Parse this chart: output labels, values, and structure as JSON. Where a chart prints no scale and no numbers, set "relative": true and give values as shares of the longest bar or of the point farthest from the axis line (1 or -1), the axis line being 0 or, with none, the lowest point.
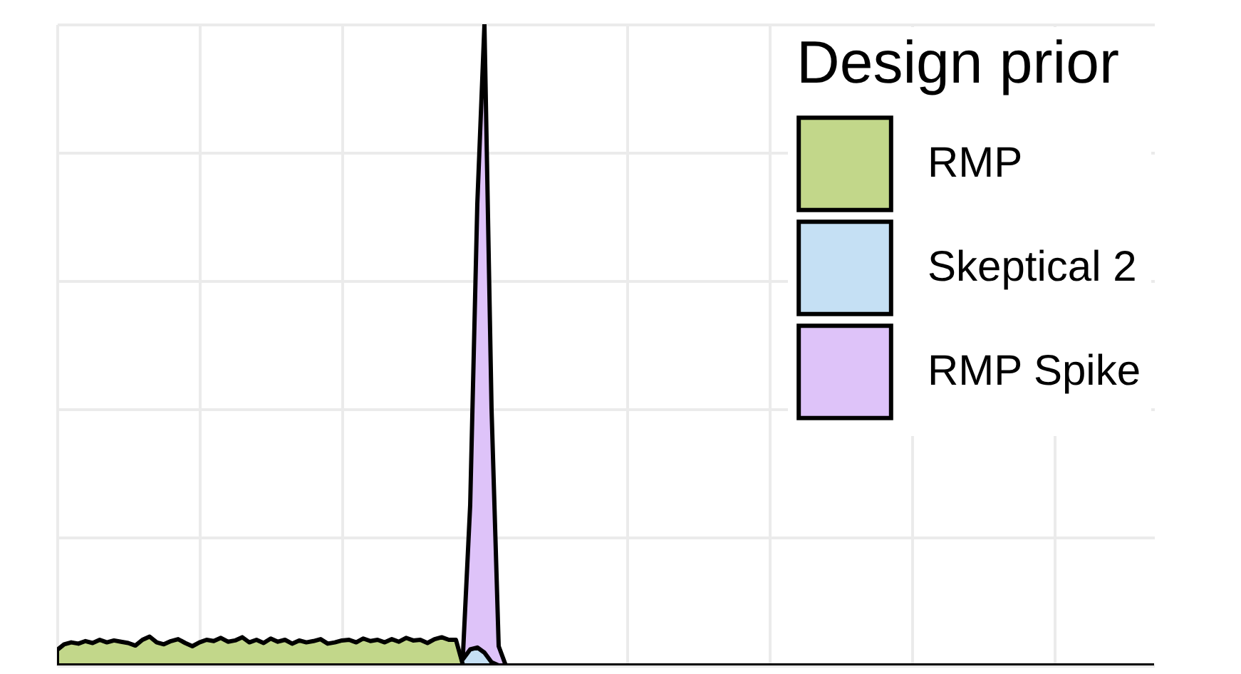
{
  "chart_data": {
    "type": "area",
    "relative": true,
    "legend_title": "Design prior",
    "legend": "top right",
    "grid": true,
    "tick_labels": false,
    "categories": [
      null,
      null,
      null,
      null,
      null,
      null,
      null,
      null,
      null,
      null,
      null,
      null,
      null,
      null,
      null,
      null,
      null,
      null,
      null,
      null,
      null,
      null,
      null,
      null,
      null,
      null,
      null,
      null,
      null,
      null,
      null,
      null,
      null,
      null,
      null,
      null,
      null,
      null,
      null,
      null,
      null,
      null,
      null,
      null,
      null,
      null,
      null,
      null,
      null,
      null,
      null,
      null,
      null,
      null,
      null,
      null,
      null,
      null,
      null,
      null,
      null,
      null,
      null,
      null,
      null,
      null,
      null,
      null,
      null,
      null,
      null,
      null,
      null,
      null,
      null,
      null,
      null,
      null,
      null,
      null,
      null,
      null,
      null,
      null,
      null,
      null,
      null,
      null,
      null,
      null,
      null,
      null,
      null,
      null,
      null,
      null,
      null,
      null,
      null,
      null,
      null,
      null,
      null,
      null,
      null,
      null,
      null,
      null,
      null,
      null,
      null,
      null,
      null,
      null,
      null,
      null,
      null,
      null,
      null,
      null,
      null,
      null,
      null,
      null,
      null,
      null,
      null,
      null,
      null,
      null,
      null,
      null,
      null,
      null,
      null,
      null,
      null,
      null,
      null,
      null,
      null,
      null,
      null,
      null,
      null,
      null,
      null,
      null,
      null,
      null,
      null,
      null,
      null,
      null,
      null
    ],
    "series": [
      {
        "name": "RMP",
        "color": "#c2d78a",
        "values": [
          0.024,
          0.033,
          0.036,
          0.034,
          0.038,
          0.035,
          0.04,
          0.036,
          0.039,
          0.037,
          0.035,
          0.031,
          0.04,
          0.045,
          0.036,
          0.033,
          0.038,
          0.041,
          0.035,
          0.03,
          0.036,
          0.04,
          0.038,
          0.043,
          0.037,
          0.039,
          0.044,
          0.036,
          0.04,
          0.035,
          0.042,
          0.037,
          0.04,
          0.034,
          0.039,
          0.036,
          0.038,
          0.041,
          0.034,
          0.036,
          0.039,
          0.04,
          0.036,
          0.042,
          0.038,
          0.04,
          0.036,
          0.041,
          0.037,
          0.043,
          0.039,
          0.04,
          0.035,
          0.041,
          0.044,
          0.04,
          0.04,
          0,
          0,
          0,
          0,
          0,
          0,
          0,
          0,
          0,
          0,
          0,
          0,
          0,
          0,
          0,
          0,
          0,
          0,
          0,
          0,
          0,
          0,
          0,
          0,
          0,
          0,
          0,
          0,
          0,
          0,
          0,
          0,
          0,
          0,
          0,
          0,
          0,
          0,
          0,
          0,
          0,
          0,
          0,
          0,
          0,
          0,
          0,
          0,
          0,
          0,
          0,
          0,
          0,
          0,
          0,
          0,
          0,
          0,
          0,
          0,
          0,
          0,
          0,
          0,
          0,
          0,
          0,
          0,
          0,
          0,
          0,
          0,
          0,
          0,
          0,
          0,
          0,
          0,
          0,
          0,
          0,
          0,
          0,
          0,
          0,
          0,
          0,
          0,
          0,
          0,
          0,
          0,
          0,
          0,
          0,
          0,
          0,
          0
        ]
      },
      {
        "name": "Skeptical 2",
        "color": "#c5e0f4",
        "values": [
          0,
          0,
          0,
          0,
          0,
          0,
          0,
          0,
          0,
          0,
          0,
          0,
          0,
          0,
          0,
          0,
          0,
          0,
          0,
          0,
          0,
          0,
          0,
          0,
          0,
          0,
          0,
          0,
          0,
          0,
          0,
          0,
          0,
          0,
          0,
          0,
          0,
          0,
          0,
          0,
          0,
          0,
          0,
          0,
          0,
          0,
          0,
          0,
          0,
          0,
          0,
          0,
          0,
          0,
          0,
          0,
          0,
          0.01,
          0.025,
          0.028,
          0.02,
          0.005,
          0,
          0,
          0,
          0,
          0,
          0,
          0,
          0,
          0,
          0,
          0,
          0,
          0,
          0,
          0,
          0,
          0,
          0,
          0,
          0,
          0,
          0,
          0,
          0,
          0,
          0,
          0,
          0,
          0,
          0,
          0,
          0,
          0,
          0,
          0,
          0,
          0,
          0,
          0,
          0,
          0,
          0,
          0,
          0,
          0,
          0,
          0,
          0,
          0,
          0,
          0,
          0,
          0,
          0,
          0,
          0,
          0,
          0,
          0,
          0,
          0,
          0,
          0,
          0,
          0,
          0,
          0,
          0,
          0,
          0,
          0,
          0,
          0,
          0,
          0,
          0,
          0,
          0,
          0,
          0,
          0,
          0,
          0,
          0,
          0,
          0,
          0,
          0,
          0,
          0,
          0,
          0,
          0
        ]
      },
      {
        "name": "RMP Spike",
        "color": "#dec3f9",
        "values": [
          0,
          0,
          0,
          0,
          0,
          0,
          0,
          0,
          0,
          0,
          0,
          0,
          0,
          0,
          0,
          0,
          0,
          0,
          0,
          0,
          0,
          0,
          0,
          0,
          0,
          0,
          0,
          0,
          0,
          0,
          0,
          0,
          0,
          0,
          0,
          0,
          0,
          0,
          0,
          0,
          0,
          0,
          0,
          0,
          0,
          0,
          0,
          0,
          0,
          0,
          0,
          0,
          0,
          0,
          0,
          0,
          0,
          0.02,
          0.25,
          0.72,
          1,
          0.4,
          0.03,
          0,
          0,
          0,
          0,
          0,
          0,
          0,
          0,
          0,
          0,
          0,
          0,
          0,
          0,
          0,
          0,
          0,
          0,
          0,
          0,
          0,
          0,
          0,
          0,
          0,
          0,
          0,
          0,
          0,
          0,
          0,
          0,
          0,
          0,
          0,
          0,
          0,
          0,
          0,
          0,
          0,
          0,
          0,
          0,
          0,
          0,
          0,
          0,
          0,
          0,
          0,
          0,
          0,
          0,
          0,
          0,
          0,
          0,
          0,
          0,
          0,
          0,
          0,
          0,
          0,
          0,
          0,
          0,
          0,
          0,
          0,
          0,
          0,
          0,
          0,
          0,
          0,
          0,
          0,
          0,
          0,
          0,
          0,
          0,
          0,
          0,
          0,
          0,
          0,
          0,
          0,
          0
        ]
      }
    ]
  }
}
